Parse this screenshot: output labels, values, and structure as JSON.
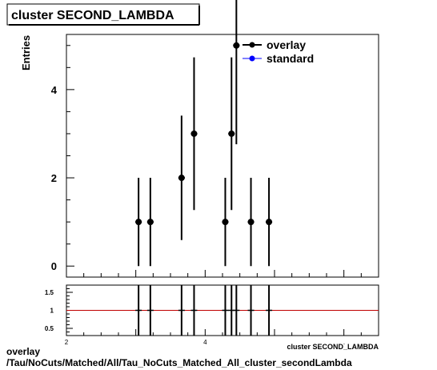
{
  "title": "cluster SECOND_LAMBDA",
  "footer": {
    "line1": "overlay",
    "line2": "/Tau/NoCuts/Matched/All/Tau_NoCuts_Matched_All_cluster_secondLambda"
  },
  "chart_data": {
    "type": "scatter",
    "title": "cluster SECOND_LAMBDA",
    "ylabel": "Entries",
    "xlabel": "cluster SECOND_LAMBDA",
    "xlim": [
      2.0,
      6.5
    ],
    "ylim": [
      -0.25,
      5.25
    ],
    "yticks": [
      0,
      2,
      4
    ],
    "xticks": [
      2,
      4,
      6
    ],
    "legend": {
      "placement": "top-right",
      "entries": [
        {
          "name": "overlay",
          "color": "#000000"
        },
        {
          "name": "standard",
          "color": "#0000ff"
        }
      ]
    },
    "series": [
      {
        "name": "overlay",
        "color": "#000000",
        "points": [
          {
            "x": 3.04,
            "y": 1,
            "err": 1.0
          },
          {
            "x": 3.21,
            "y": 1,
            "err": 1.0
          },
          {
            "x": 3.66,
            "y": 2,
            "err": 1.41
          },
          {
            "x": 3.84,
            "y": 3,
            "err": 1.73
          },
          {
            "x": 4.29,
            "y": 1,
            "err": 1.0
          },
          {
            "x": 4.38,
            "y": 3,
            "err": 1.73
          },
          {
            "x": 4.45,
            "y": 5,
            "err": 2.24
          },
          {
            "x": 4.66,
            "y": 1,
            "err": 1.0
          },
          {
            "x": 4.92,
            "y": 1,
            "err": 1.0
          }
        ]
      }
    ],
    "ratio": {
      "ylim": [
        0.3,
        1.7
      ],
      "yticks": [
        0.5,
        1,
        1.5
      ],
      "reference_line": 1.0,
      "reference_color": "#c00000"
    }
  }
}
